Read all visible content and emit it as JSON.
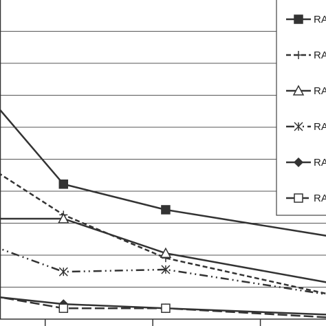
{
  "chart_data": {
    "type": "line",
    "x": [
      0.5,
      1.17,
      2.12,
      3.7
    ],
    "xlim": [
      0.58,
      3.61
    ],
    "xticks": [
      1,
      2,
      3
    ],
    "ylim": [
      0,
      10
    ],
    "yticks": [
      1,
      2,
      3,
      4,
      5,
      6,
      7,
      8,
      9
    ],
    "grid": true,
    "legend": "upper right",
    "series": [
      {
        "name": "RA",
        "color": "#333333",
        "marker": "filled-square",
        "dash": "solid",
        "values": [
          6.86,
          4.22,
          3.42,
          2.56
        ]
      },
      {
        "name": "RA",
        "color": "#333333",
        "marker": "plus",
        "dash": "dashed",
        "values": [
          4.71,
          3.26,
          1.91,
          0.73
        ]
      },
      {
        "name": "RA",
        "color": "#333333",
        "marker": "open-triangle",
        "dash": "solid",
        "values": [
          3.14,
          3.14,
          2.06,
          1.1
        ]
      },
      {
        "name": "RA",
        "color": "#333333",
        "marker": "asterisk",
        "dash": "dashdot",
        "values": [
          2.3,
          1.48,
          1.55,
          0.73
        ]
      },
      {
        "name": "RA",
        "color": "#333333",
        "marker": "filled-diamond",
        "dash": "solid",
        "values": [
          0.71,
          0.47,
          0.34,
          0.13
        ]
      },
      {
        "name": "RA",
        "color": "#333333",
        "marker": "open-square",
        "dash": "longdash",
        "values": [
          0.73,
          0.34,
          0.34,
          0.04
        ]
      }
    ]
  }
}
